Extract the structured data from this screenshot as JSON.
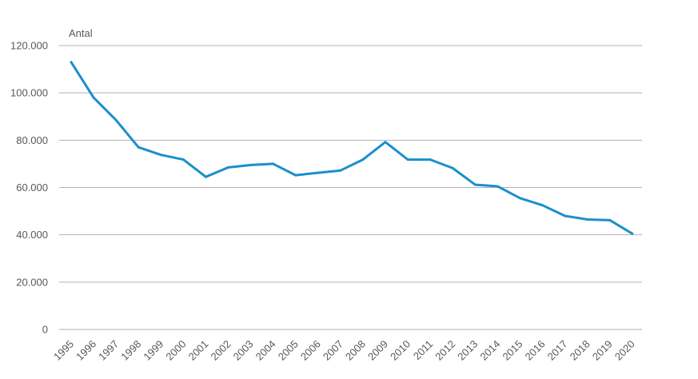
{
  "chart_data": {
    "type": "line",
    "ylabel": "Antal",
    "ylim": [
      0,
      120000
    ],
    "y_ticks": [
      0,
      20000,
      40000,
      60000,
      80000,
      100000,
      120000
    ],
    "y_tick_labels": [
      "0",
      "20.000",
      "40.000",
      "60.000",
      "80.000",
      "100.000",
      "120.000"
    ],
    "grid": true,
    "line_color": "#1b8fcc",
    "grid_color": "#b3b3b3",
    "categories": [
      "1995",
      "1996",
      "1997",
      "1998",
      "1999",
      "2000",
      "2001",
      "2002",
      "2003",
      "2004",
      "2005",
      "2006",
      "2007",
      "2008",
      "2009",
      "2010",
      "2011",
      "2012",
      "2013",
      "2014",
      "2015",
      "2016",
      "2017",
      "2018",
      "2019",
      "2020"
    ],
    "series": [
      {
        "values": [
          113000,
          98000,
          88500,
          77000,
          73800,
          71800,
          64500,
          68500,
          69500,
          70000,
          65200,
          66200,
          67200,
          71800,
          79200,
          71800,
          71800,
          68200,
          61200,
          60500,
          55500,
          52500,
          48000,
          46500,
          46200,
          40500
        ]
      }
    ]
  }
}
